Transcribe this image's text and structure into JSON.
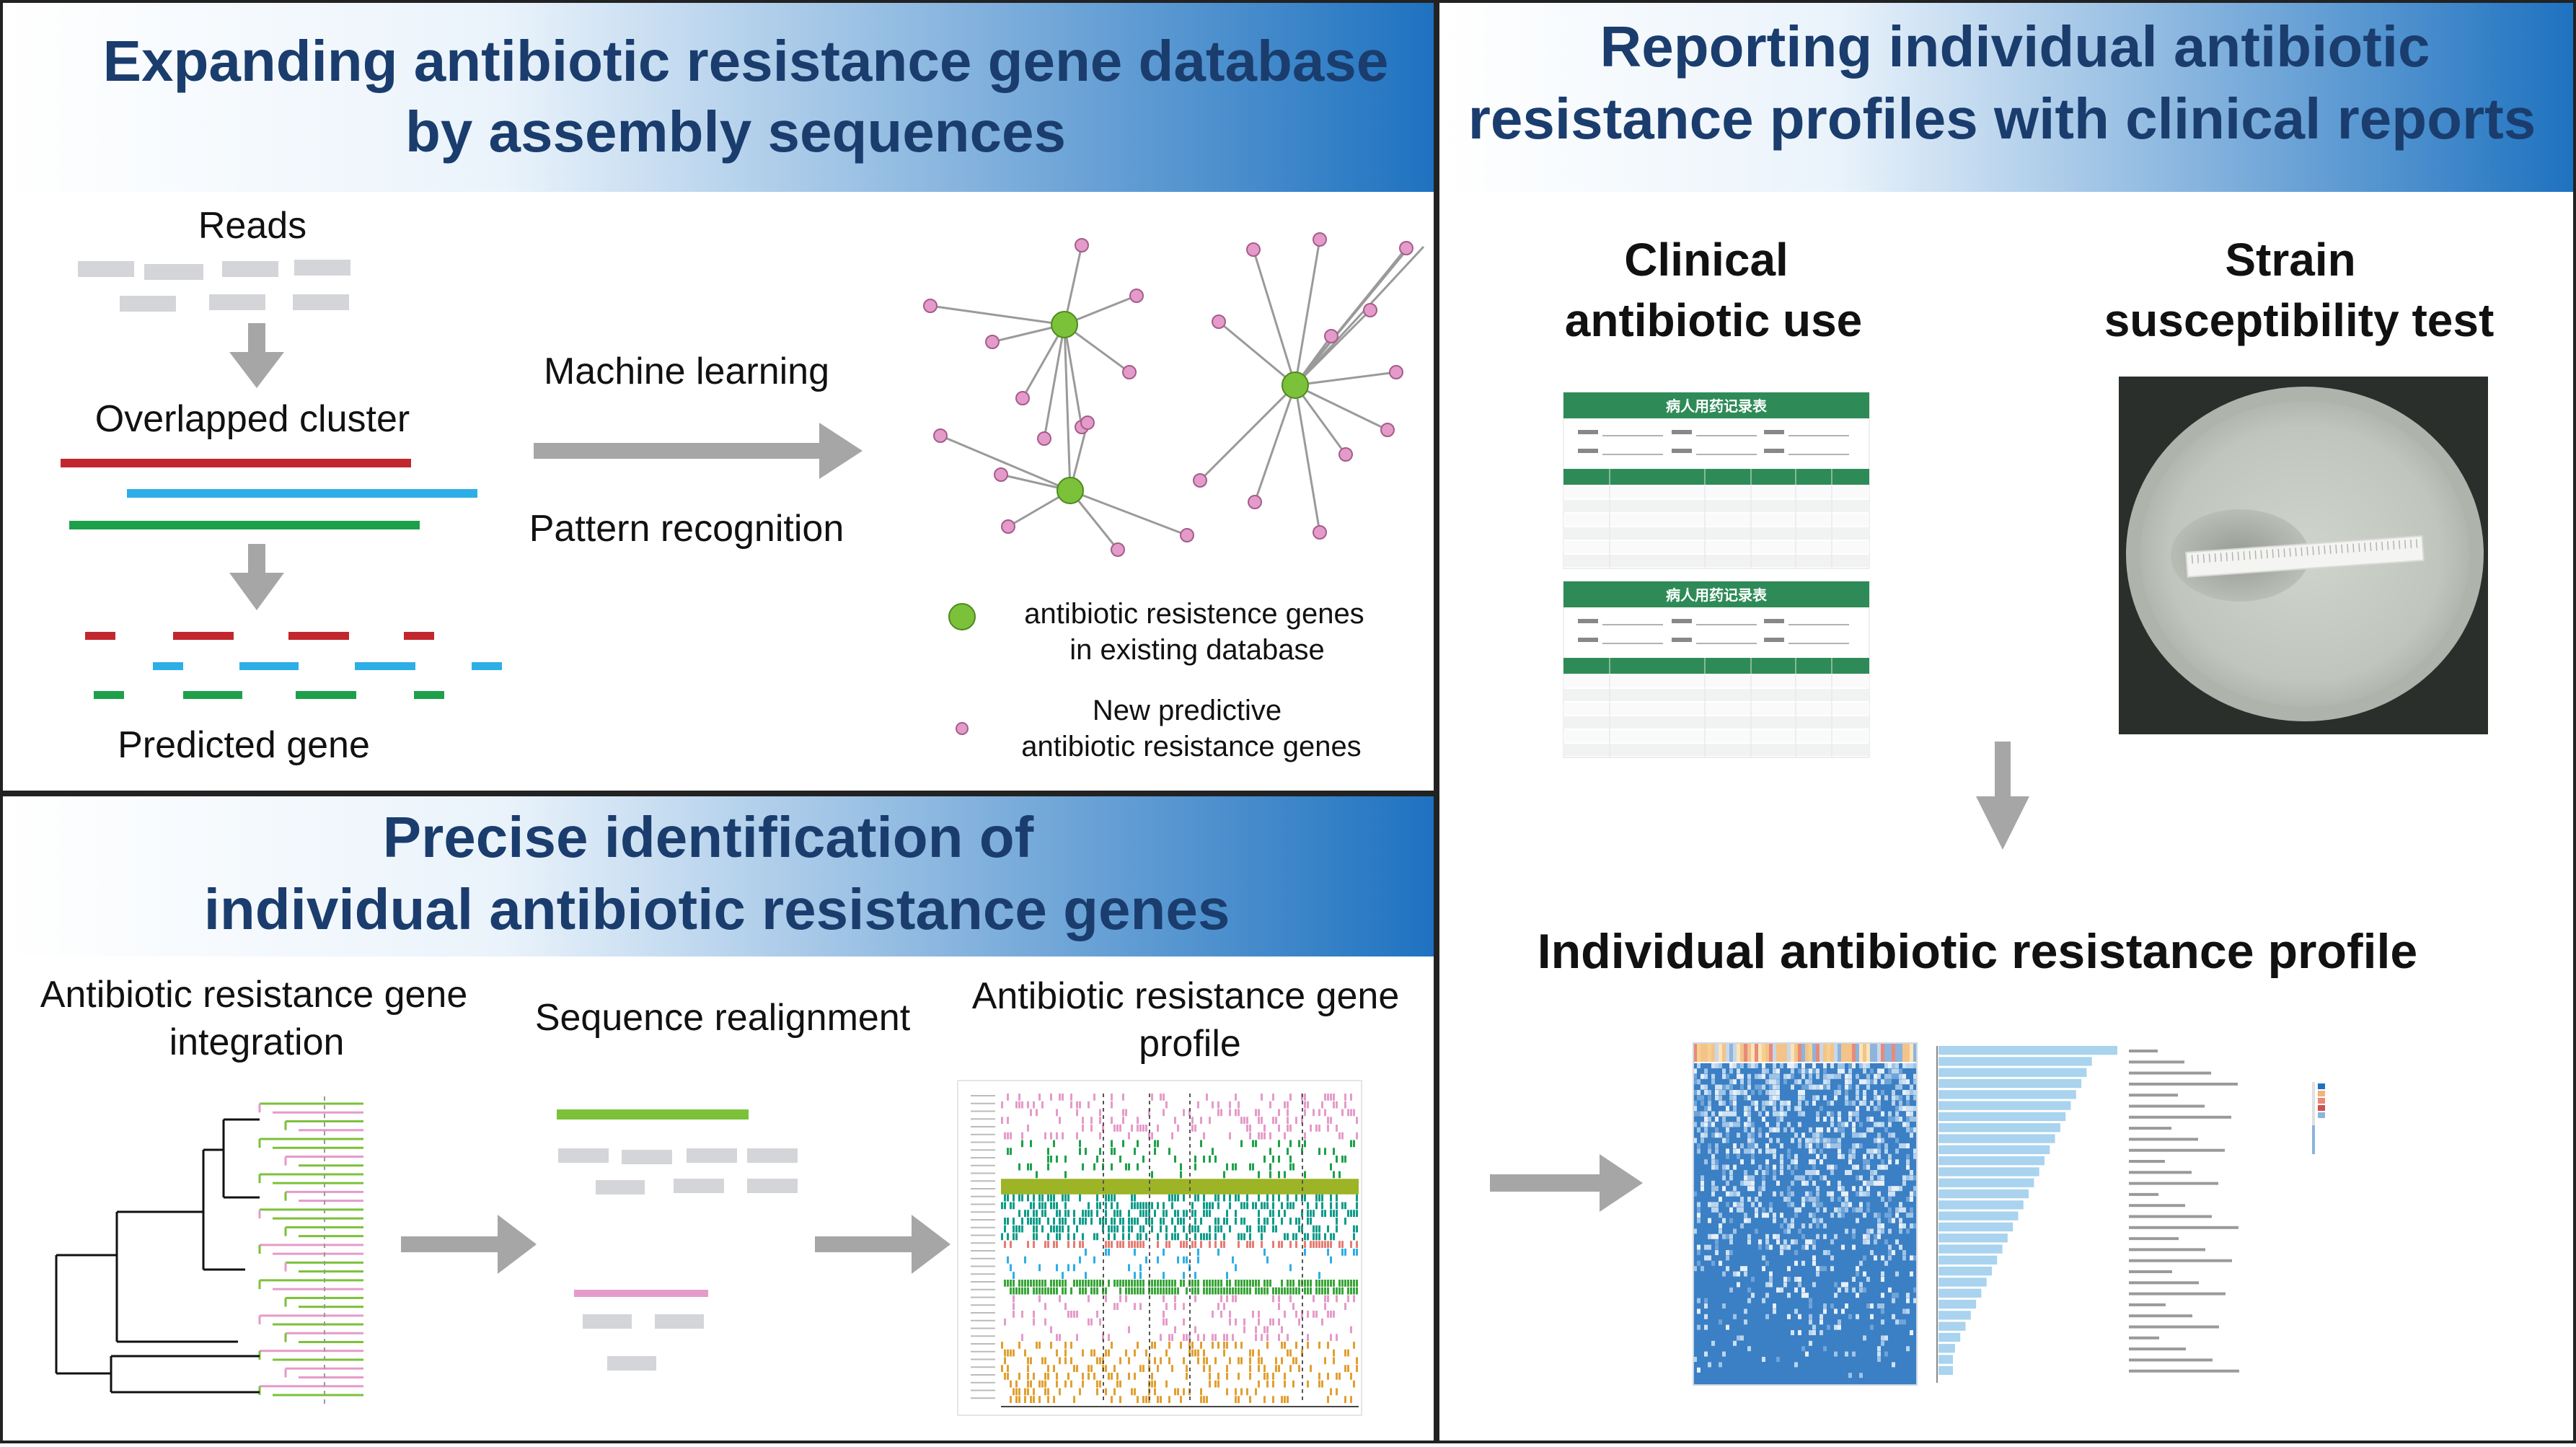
{
  "panel_top_left": {
    "title_line1": "Expanding antibiotic resistance gene database",
    "title_line2": "by assembly sequences",
    "reads_label": "Reads",
    "overlapped_label": "Overlapped cluster",
    "predicted_label": "Predicted gene",
    "ml_label": "Machine learning",
    "pattern_label": "Pattern recognition",
    "legend_existing_line1": "antibiotic resistence genes",
    "legend_existing_line2": "in existing database",
    "legend_new_line1": "New predictive",
    "legend_new_line2": "antibiotic resistance genes"
  },
  "panel_bottom_left": {
    "title_line1": "Precise identification of",
    "title_line2": "individual antibiotic resistance genes",
    "step1_line1": "Antibiotic resistance gene",
    "step1_line2": "integration",
    "step2_label": "Sequence realignment",
    "step3_line1": "Antibiotic resistance gene",
    "step3_line2": "profile"
  },
  "panel_right": {
    "title_line1": "Reporting individual antibiotic",
    "title_line2": "resistance profiles with clinical reports",
    "clinical_line1": "Clinical",
    "clinical_line2": "antibiotic use",
    "strain_line1": "Strain",
    "strain_line2": "susceptibility test",
    "form_title": "病人用药记录表",
    "profile_label": "Individual antibiotic resistance profile"
  },
  "colors": {
    "title_text": "#1a3d6e",
    "header_gradient_start": "#ffffff",
    "header_gradient_end": "#1e72c0",
    "arrow_gray": "#a6a6a6",
    "hub_green": "#7cc13a",
    "node_pink": "#e59bc9",
    "seq_red": "#c1272d",
    "seq_blue": "#2eaee6",
    "seq_green": "#1ea04a",
    "form_green": "#2e8b57",
    "heat_blue": "#3b7fc4",
    "bar_blue": "#a9d3ee"
  }
}
